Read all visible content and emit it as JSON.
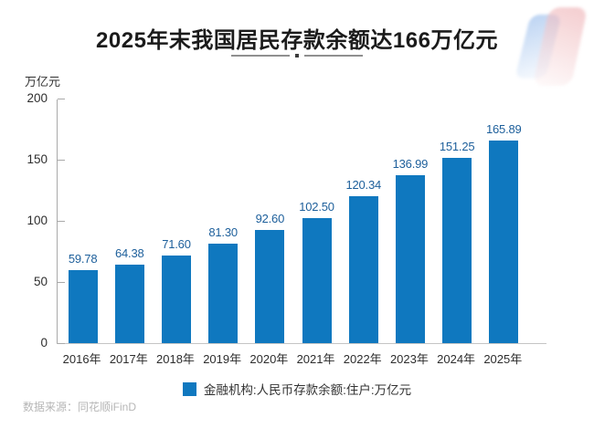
{
  "title": "2025年末我国居民存款余额达166万亿元",
  "y_unit_label": "万亿元",
  "legend": {
    "label": "金融机构:人民币存款余额:住户:万亿元"
  },
  "source": "数据来源：同花顺iFinD",
  "colors": {
    "bar": "#0f78bf",
    "value_label": "#1d5f9b",
    "axis": "#a9a9a9",
    "text": "#2d2d2d",
    "source_text": "#b6b6b6"
  },
  "chart_data": {
    "type": "bar",
    "title": "2025年末我国居民存款余额达166万亿元",
    "categories": [
      "2016年",
      "2017年",
      "2018年",
      "2019年",
      "2020年",
      "2021年",
      "2022年",
      "2023年",
      "2024年",
      "2025年"
    ],
    "values": [
      59.78,
      64.38,
      71.6,
      81.3,
      92.6,
      102.5,
      120.34,
      136.99,
      151.25,
      165.89
    ],
    "xlabel": "",
    "ylabel": "万亿元",
    "ylim": [
      0,
      200
    ],
    "yticks": [
      0,
      50,
      100,
      150,
      200
    ],
    "grid": false,
    "legend_entries": [
      "金融机构:人民币存款余额:住户:万亿元"
    ],
    "legend_position": "bottom",
    "value_label_decimals": 2
  }
}
